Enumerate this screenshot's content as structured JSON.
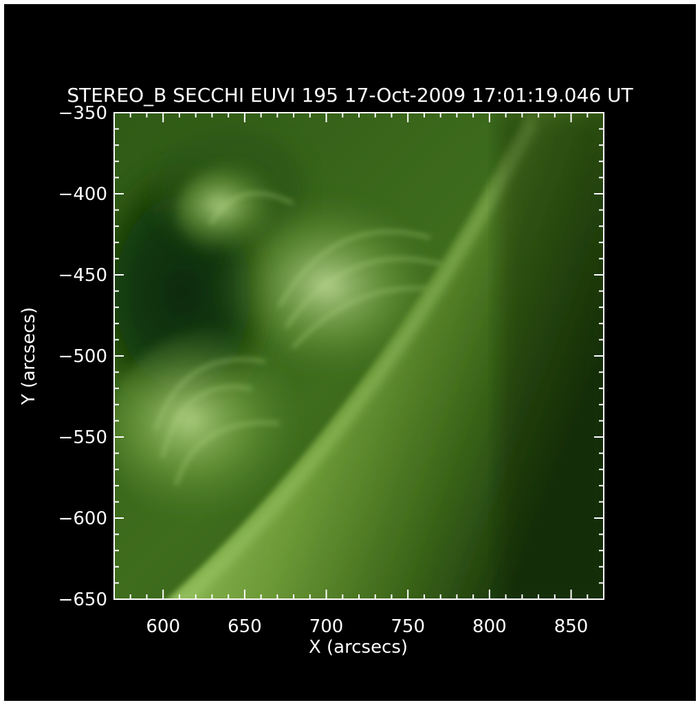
{
  "title": "STEREO_B SECCHI EUVI 195 17-Oct-2009 17:01:19.046 UT",
  "xlabel": "X (arcsecs)",
  "ylabel": "Y (arcsecs)",
  "x_axis": {
    "range": [
      570,
      870
    ],
    "ticks": [
      "600",
      "650",
      "700",
      "750",
      "800",
      "850"
    ],
    "tick_values": [
      600,
      650,
      700,
      750,
      800,
      850
    ]
  },
  "y_axis": {
    "range": [
      -650,
      -350
    ],
    "ticks": [
      "-350",
      "-400",
      "-450",
      "-500",
      "-550",
      "-600",
      "-650"
    ],
    "tick_values": [
      -350,
      -400,
      -450,
      -500,
      -550,
      -600,
      -650
    ]
  },
  "colors": {
    "background": "#000000",
    "axes": "#ffffff",
    "image_colormap": "green"
  },
  "image_content": "solar limb with coronal loops in green EUV emission"
}
